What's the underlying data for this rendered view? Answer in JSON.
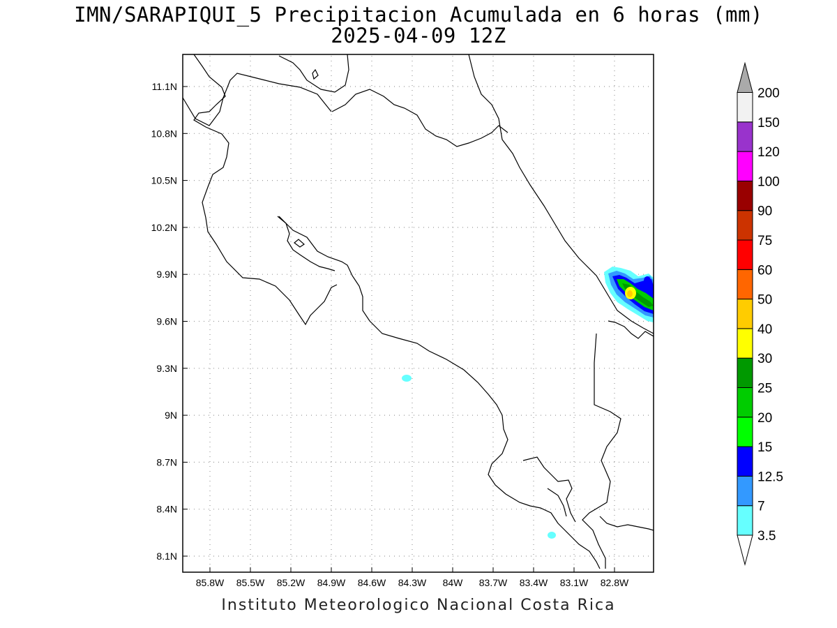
{
  "title_line1": "IMN/SARAPIQUI_5 Precipitacion Acumulada en 6 horas (mm)",
  "title_line2": "2025-04-09 12Z",
  "footer": "Instituto Meteorologico Nacional Costa Rica",
  "map": {
    "lon_range": [
      -86.0,
      -83.3
    ],
    "lat_range": [
      8.0,
      11.3
    ],
    "lon_ticks": [
      "85.8W",
      "85.5W",
      "85.2W",
      "84.9W",
      "84.6W",
      "84.3W",
      "84W",
      "83.7W",
      "83.4W",
      "83.1W",
      "82.8W"
    ],
    "lat_ticks": [
      "8.1N",
      "8.4N",
      "8.7N",
      "9N",
      "9.3N",
      "9.6N",
      "9.9N",
      "10.2N",
      "10.5N",
      "10.8N",
      "11.1N"
    ],
    "grid": "dotted"
  },
  "colorbar": {
    "levels": [
      "3.5",
      "7",
      "12.5",
      "15",
      "20",
      "25",
      "30",
      "40",
      "50",
      "60",
      "75",
      "90",
      "100",
      "120",
      "150",
      "200"
    ],
    "colors": [
      "#66ffff",
      "#3399ff",
      "#0000ff",
      "#00ff00",
      "#00cc00",
      "#009900",
      "#ffff00",
      "#ffcc00",
      "#ff6600",
      "#ff0000",
      "#cc3300",
      "#990000",
      "#ff00ff",
      "#9933cc",
      "#f2f2f2",
      "#aaaaaa",
      "#ffffff"
    ]
  }
}
